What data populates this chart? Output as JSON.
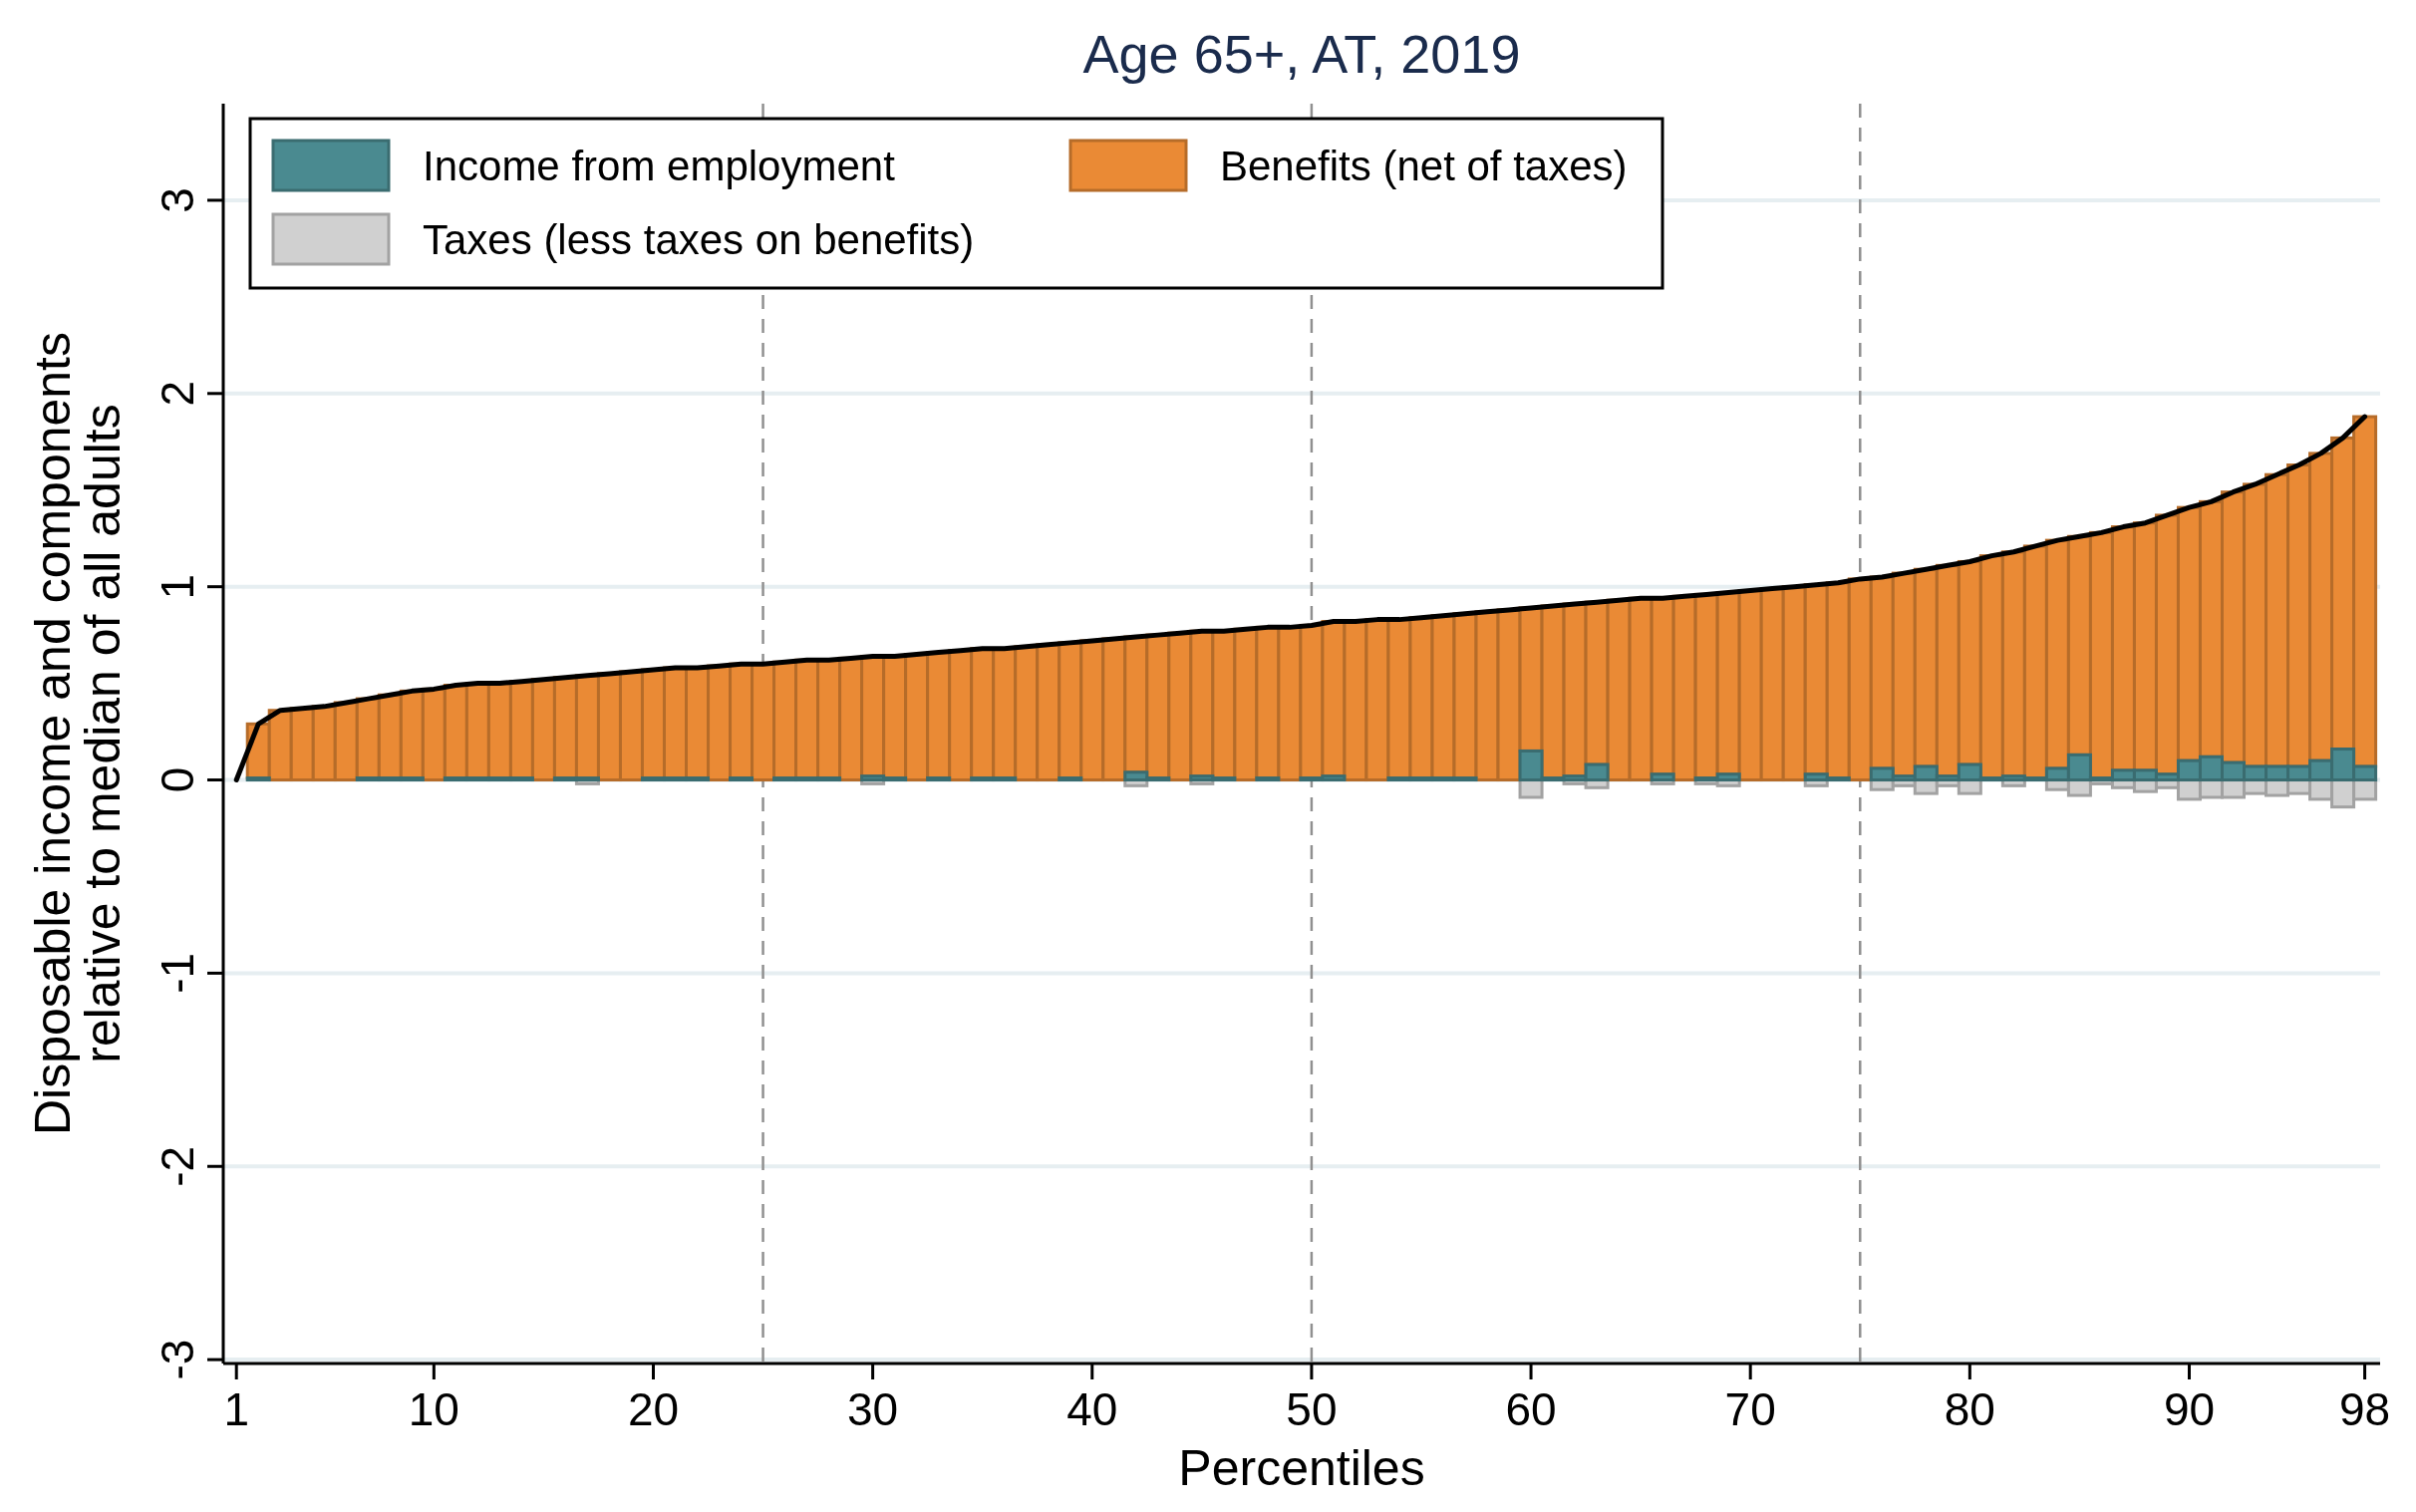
{
  "chart_data": {
    "type": "bar",
    "title": "Age 65+, AT, 2019",
    "xlabel": "Percentiles",
    "ylabel": "Disposable income and components\nrelative to median of all adults",
    "stacked": true,
    "x": [
      1,
      2,
      3,
      4,
      5,
      6,
      7,
      8,
      9,
      10,
      11,
      12,
      13,
      14,
      15,
      16,
      17,
      18,
      19,
      20,
      21,
      22,
      23,
      24,
      25,
      26,
      27,
      28,
      29,
      30,
      31,
      32,
      33,
      34,
      35,
      36,
      37,
      38,
      39,
      40,
      41,
      42,
      43,
      44,
      45,
      46,
      47,
      48,
      49,
      50,
      51,
      52,
      53,
      54,
      55,
      56,
      57,
      58,
      59,
      60,
      61,
      62,
      63,
      64,
      65,
      66,
      67,
      68,
      69,
      70,
      71,
      72,
      73,
      74,
      75,
      76,
      77,
      78,
      79,
      80,
      81,
      82,
      83,
      84,
      85,
      86,
      87,
      88,
      89,
      90,
      91,
      92,
      93,
      94,
      95,
      96,
      97,
      98
    ],
    "series": [
      {
        "name": "Income from employment",
        "color": "#4a8a90",
        "values": [
          null,
          0.01,
          null,
          null,
          null,
          null,
          0.01,
          0.01,
          0.01,
          null,
          0.01,
          0.01,
          0.01,
          0.01,
          null,
          0.01,
          0.01,
          null,
          null,
          0.01,
          0.01,
          0.01,
          null,
          0.01,
          null,
          0.01,
          0.01,
          0.01,
          null,
          0.02,
          0.01,
          null,
          0.01,
          null,
          0.01,
          0.01,
          null,
          null,
          0.01,
          null,
          null,
          0.04,
          0.01,
          null,
          0.02,
          0.01,
          null,
          0.01,
          null,
          0.01,
          0.02,
          null,
          null,
          0.01,
          0.01,
          0.01,
          0.01,
          null,
          null,
          0.15,
          0.01,
          0.02,
          0.08,
          null,
          null,
          0.03,
          null,
          0.01,
          0.03,
          null,
          null,
          null,
          0.03,
          0.01,
          null,
          0.06,
          0.02,
          0.07,
          0.02,
          0.08,
          0.01,
          0.02,
          0.01,
          0.06,
          0.13,
          0.01,
          0.05,
          0.05,
          0.03,
          0.1,
          0.12,
          0.09,
          0.07,
          0.07,
          0.07,
          0.1,
          0.16,
          0.07
        ]
      },
      {
        "name": "Benefits (net of taxes)",
        "color": "#ea8a35",
        "values": [
          0,
          0.28,
          0.36,
          0.37,
          0.38,
          0.4,
          0.41,
          0.43,
          0.45,
          0.47,
          0.48,
          0.49,
          0.49,
          0.5,
          0.52,
          0.52,
          0.53,
          0.55,
          0.56,
          0.56,
          0.57,
          0.57,
          0.59,
          0.59,
          0.6,
          0.6,
          0.61,
          0.61,
          0.63,
          0.62,
          0.63,
          0.65,
          0.65,
          0.67,
          0.67,
          0.67,
          0.69,
          0.7,
          0.7,
          0.72,
          0.73,
          0.7,
          0.74,
          0.76,
          0.75,
          0.76,
          0.78,
          0.78,
          0.79,
          0.79,
          0.8,
          0.82,
          0.83,
          0.82,
          0.83,
          0.84,
          0.85,
          0.87,
          0.88,
          0.74,
          0.89,
          0.89,
          0.84,
          0.93,
          0.94,
          0.91,
          0.95,
          0.95,
          0.94,
          0.98,
          0.99,
          1.0,
          0.98,
          1.01,
          1.04,
          0.99,
          1.05,
          1.02,
          1.09,
          1.05,
          1.15,
          1.16,
          1.2,
          1.18,
          1.13,
          1.27,
          1.26,
          1.28,
          1.34,
          1.31,
          1.32,
          1.4,
          1.46,
          1.51,
          1.56,
          1.59,
          1.61,
          1.81
        ]
      },
      {
        "name": "Taxes (less taxes on benefits)",
        "color": "#d0d0d0",
        "values": [
          null,
          null,
          null,
          null,
          null,
          null,
          null,
          null,
          null,
          null,
          null,
          null,
          null,
          null,
          null,
          null,
          -0.02,
          null,
          null,
          null,
          null,
          null,
          null,
          null,
          null,
          null,
          null,
          null,
          null,
          -0.02,
          null,
          null,
          null,
          null,
          null,
          null,
          null,
          null,
          null,
          null,
          null,
          -0.03,
          null,
          null,
          -0.02,
          null,
          null,
          null,
          null,
          null,
          null,
          null,
          null,
          null,
          null,
          null,
          null,
          null,
          null,
          -0.09,
          null,
          -0.02,
          -0.04,
          null,
          null,
          -0.02,
          null,
          -0.02,
          -0.03,
          null,
          null,
          null,
          -0.03,
          null,
          null,
          -0.05,
          -0.03,
          -0.07,
          -0.03,
          -0.07,
          null,
          -0.03,
          null,
          -0.05,
          -0.08,
          -0.02,
          -0.04,
          -0.06,
          -0.04,
          -0.1,
          -0.09,
          -0.09,
          -0.07,
          -0.08,
          -0.07,
          -0.1,
          -0.14,
          -0.1
        ]
      },
      {
        "type": "line",
        "color": "#000000",
        "values": [
          0,
          0.29,
          0.36,
          0.37,
          0.38,
          0.4,
          0.42,
          0.44,
          0.46,
          0.47,
          0.49,
          0.5,
          0.5,
          0.51,
          0.52,
          0.53,
          0.54,
          0.55,
          0.56,
          0.57,
          0.58,
          0.58,
          0.59,
          0.6,
          0.6,
          0.61,
          0.62,
          0.62,
          0.63,
          0.64,
          0.64,
          0.65,
          0.66,
          0.67,
          0.68,
          0.68,
          0.69,
          0.7,
          0.71,
          0.72,
          0.73,
          0.74,
          0.75,
          0.76,
          0.77,
          0.77,
          0.78,
          0.79,
          0.79,
          0.8,
          0.82,
          0.82,
          0.83,
          0.83,
          0.84,
          0.85,
          0.86,
          0.87,
          0.88,
          0.89,
          0.9,
          0.91,
          0.92,
          0.93,
          0.94,
          0.94,
          0.95,
          0.96,
          0.97,
          0.98,
          0.99,
          1.0,
          1.01,
          1.02,
          1.04,
          1.05,
          1.07,
          1.09,
          1.11,
          1.13,
          1.16,
          1.18,
          1.21,
          1.24,
          1.26,
          1.28,
          1.31,
          1.33,
          1.37,
          1.41,
          1.44,
          1.49,
          1.53,
          1.58,
          1.63,
          1.69,
          1.77,
          1.88
        ]
      }
    ],
    "xlim": [
      0.4,
      98.7
    ],
    "xticks": [
      1,
      10,
      20,
      30,
      40,
      50,
      60,
      70,
      80,
      90,
      98
    ],
    "ylim": [
      -3.02,
      3.5
    ],
    "yticks": [
      -3,
      -2,
      -1,
      0,
      1,
      2,
      3
    ],
    "grid": "y",
    "legend": "top left",
    "ref_lines": [
      {
        "axis": "x",
        "value": 25,
        "color": "#909090",
        "line_style": "dashed"
      },
      {
        "axis": "x",
        "value": 50,
        "color": "#909090",
        "line_style": "dashed"
      },
      {
        "axis": "x",
        "value": 75,
        "color": "#909090",
        "line_style": "dashed"
      }
    ]
  }
}
